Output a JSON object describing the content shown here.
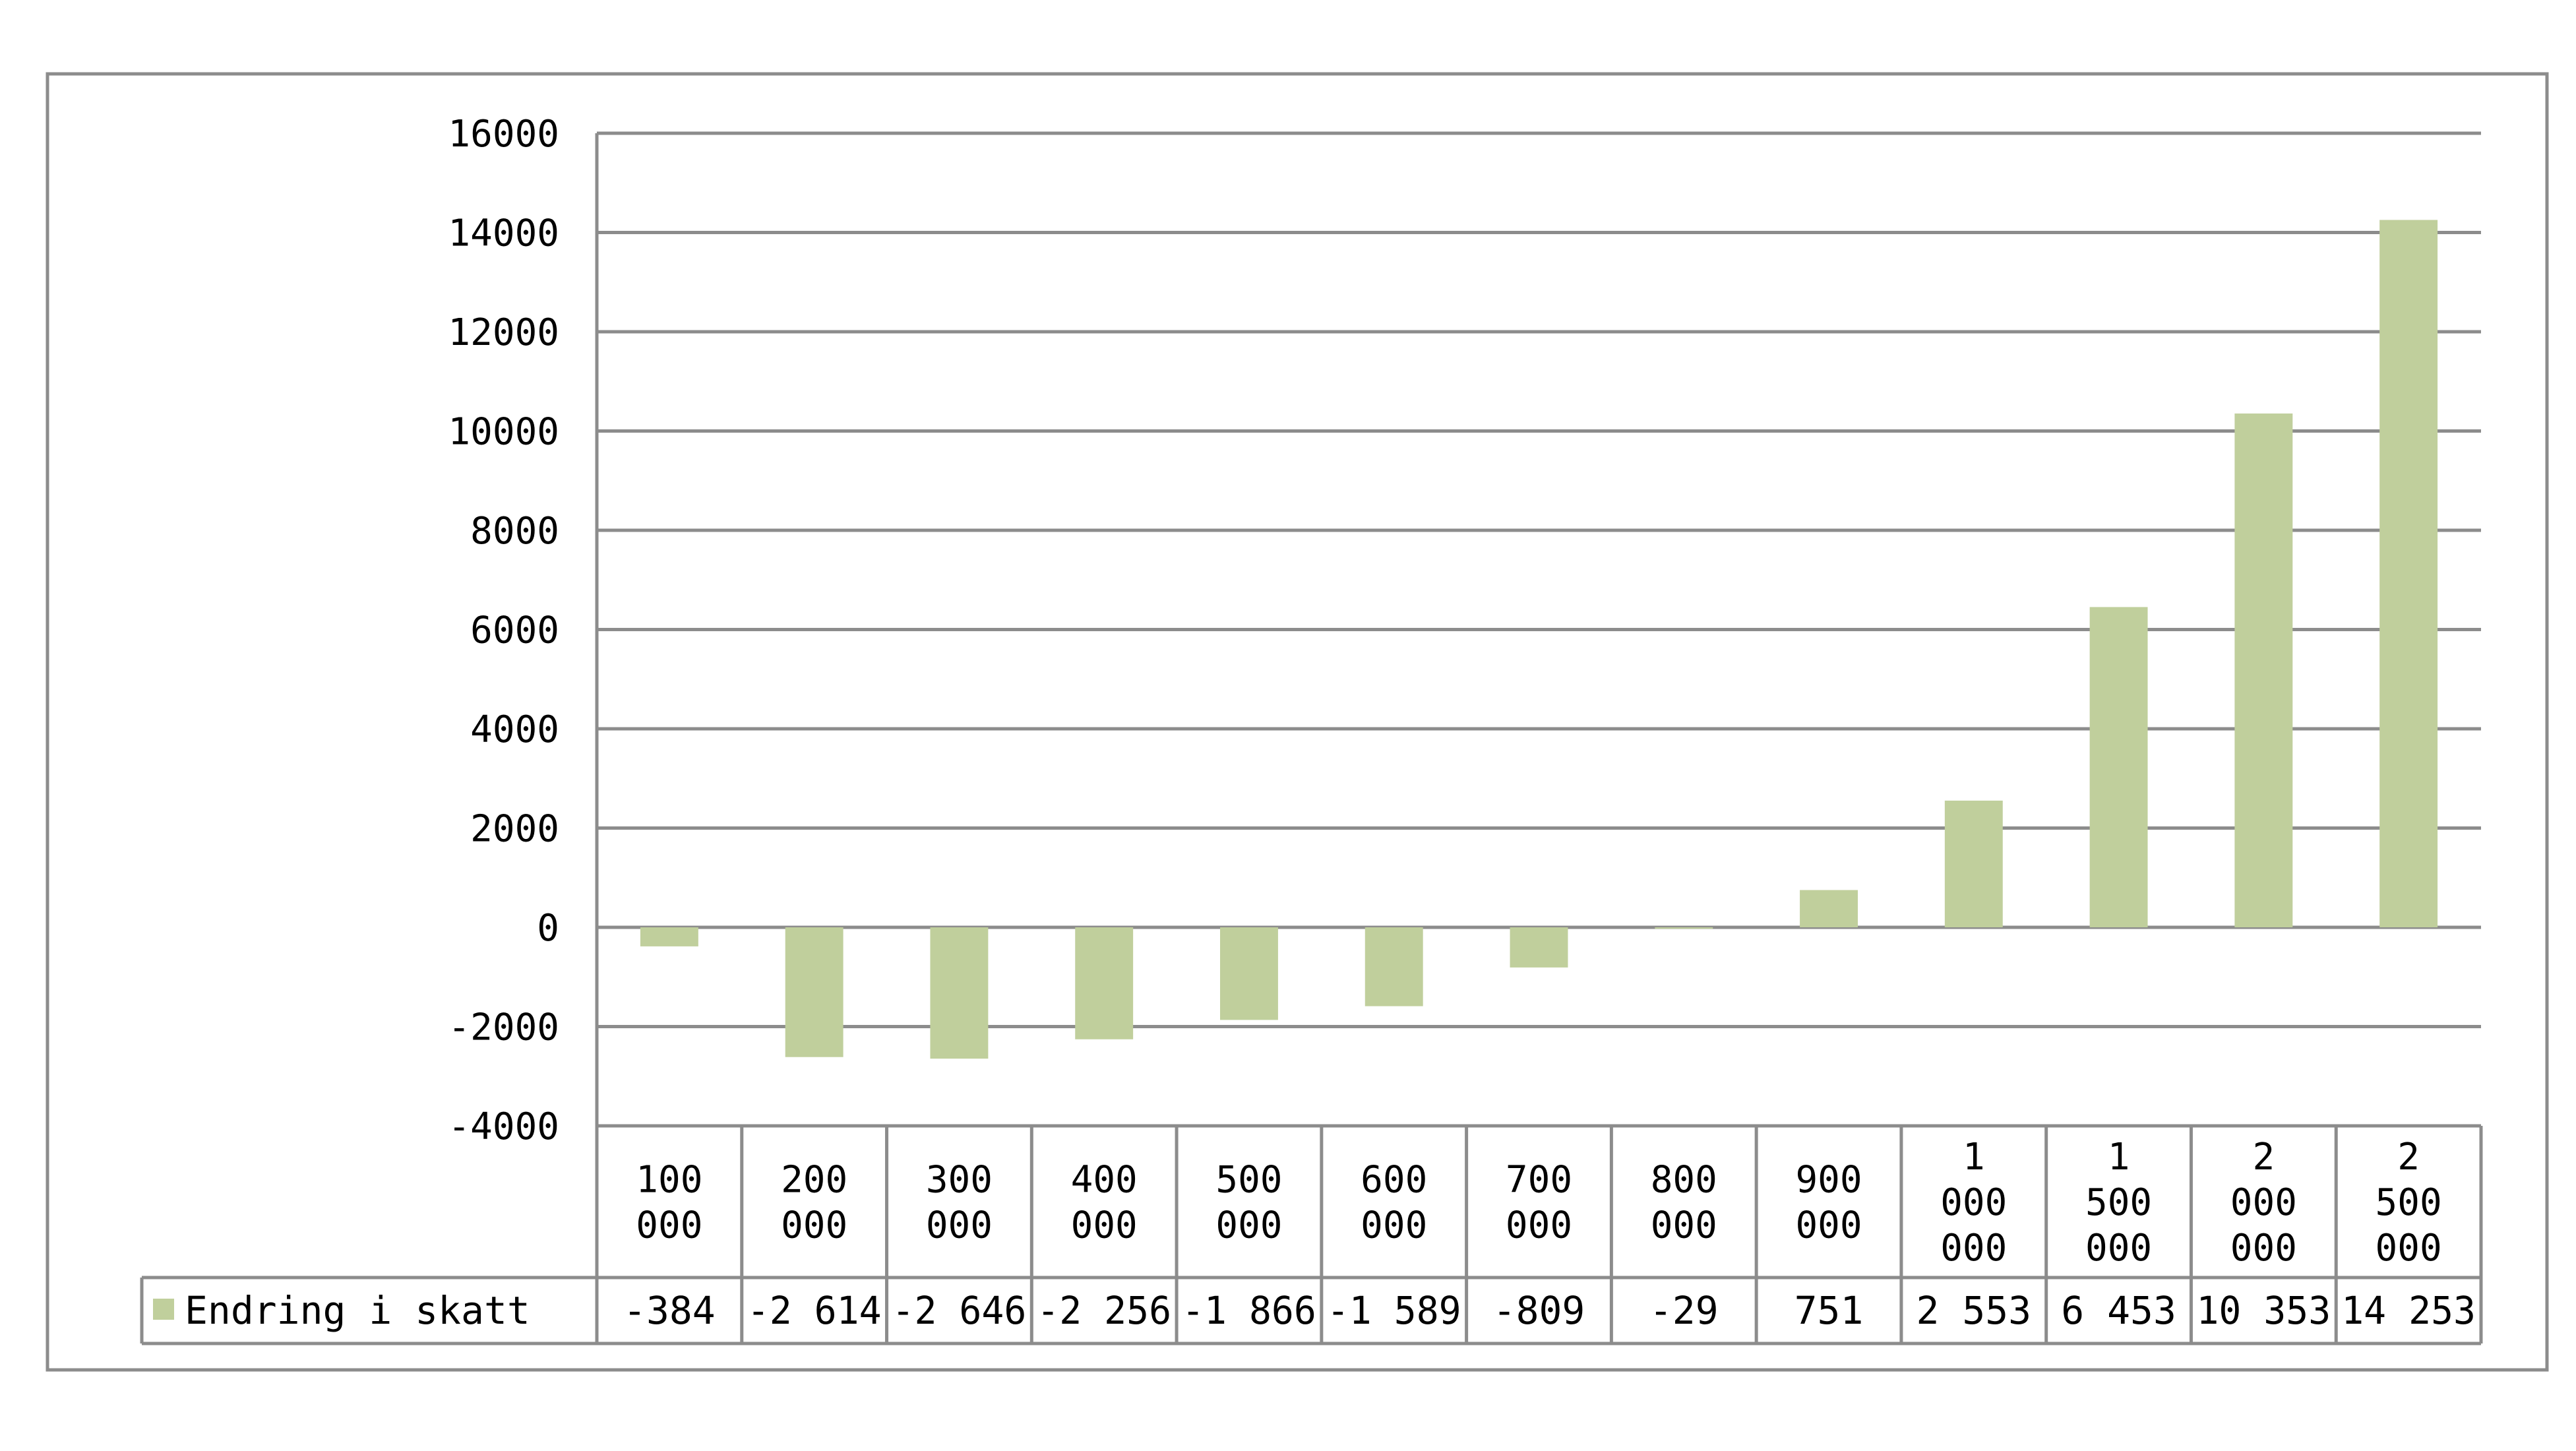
{
  "chart_data": {
    "type": "bar",
    "title": "",
    "xlabel": "",
    "ylabel": "",
    "categories": [
      [
        "100",
        "000"
      ],
      [
        "200",
        "000"
      ],
      [
        "300",
        "000"
      ],
      [
        "400",
        "000"
      ],
      [
        "500",
        "000"
      ],
      [
        "600",
        "000"
      ],
      [
        "700",
        "000"
      ],
      [
        "800",
        "000"
      ],
      [
        "900",
        "000"
      ],
      [
        "1",
        "000",
        "000"
      ],
      [
        "1",
        "500",
        "000"
      ],
      [
        "2",
        "000",
        "000"
      ],
      [
        "2",
        "500",
        "000"
      ]
    ],
    "series": [
      {
        "name": "Endring i skatt",
        "color": "#c0cf9c",
        "values": [
          -384,
          -2614,
          -2646,
          -2256,
          -1866,
          -1589,
          -809,
          -29,
          751,
          2553,
          6453,
          10353,
          14253
        ],
        "value_labels": [
          "-384",
          "-2 614",
          "-2 646",
          "-2 256",
          "-1 866",
          "-1 589",
          "-809",
          "-29",
          "751",
          "2 553",
          "6 453",
          "10 353",
          "14 253"
        ]
      }
    ],
    "ylim": [
      -4000,
      16000
    ],
    "yticks": [
      -4000,
      -2000,
      0,
      2000,
      4000,
      6000,
      8000,
      10000,
      12000,
      14000,
      16000
    ],
    "ytick_labels": [
      "-4000",
      "-2000",
      "0",
      "2000",
      "4000",
      "6000",
      "8000",
      "10000",
      "12000",
      "14000",
      "16000"
    ],
    "grid": true,
    "legend": "data-table",
    "data_table": true
  }
}
